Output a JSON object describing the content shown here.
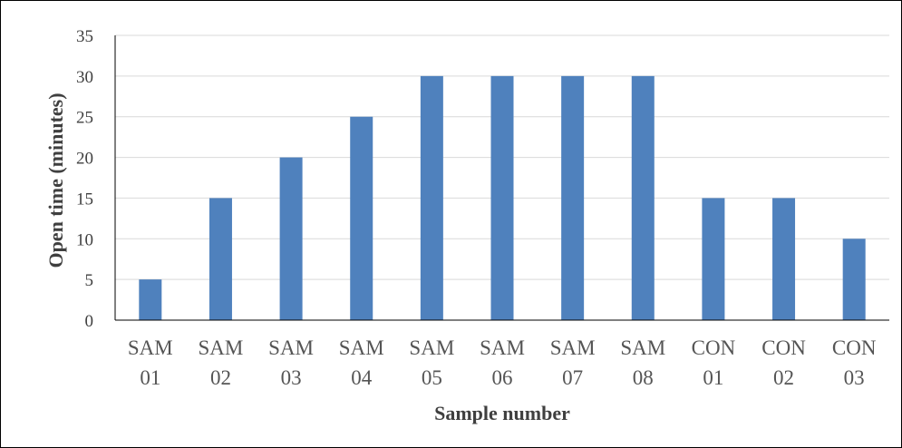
{
  "chart_data": {
    "type": "bar",
    "title": "",
    "xlabel": "Sample number",
    "ylabel": "Open time (minutes)",
    "ylim": [
      0,
      35
    ],
    "yticks": [
      0,
      5,
      10,
      15,
      20,
      25,
      30,
      35
    ],
    "grid": true,
    "categories": [
      [
        "SAM",
        "01"
      ],
      [
        "SAM",
        "02"
      ],
      [
        "SAM",
        "03"
      ],
      [
        "SAM",
        "04"
      ],
      [
        "SAM",
        "05"
      ],
      [
        "SAM",
        "06"
      ],
      [
        "SAM",
        "07"
      ],
      [
        "SAM",
        "08"
      ],
      [
        "CON",
        "01"
      ],
      [
        "CON",
        "02"
      ],
      [
        "CON",
        "03"
      ]
    ],
    "series": [
      {
        "values": [
          5,
          15,
          20,
          25,
          30,
          30,
          30,
          30,
          15,
          15,
          10
        ]
      }
    ],
    "colors": {
      "bar": "#4f81bd",
      "grid": "#d9d9d9",
      "axis": "#000000"
    }
  }
}
